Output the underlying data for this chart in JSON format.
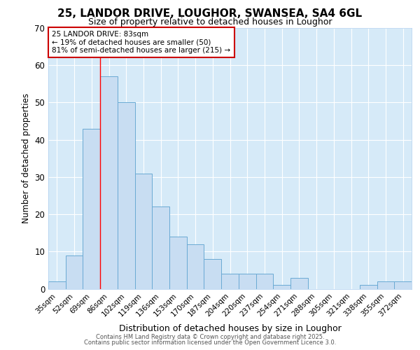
{
  "title_line1": "25, LANDOR DRIVE, LOUGHOR, SWANSEA, SA4 6GL",
  "title_line2": "Size of property relative to detached houses in Loughor",
  "xlabel": "Distribution of detached houses by size in Loughor",
  "ylabel": "Number of detached properties",
  "bar_labels": [
    "35sqm",
    "52sqm",
    "69sqm",
    "86sqm",
    "102sqm",
    "119sqm",
    "136sqm",
    "153sqm",
    "170sqm",
    "187sqm",
    "204sqm",
    "220sqm",
    "237sqm",
    "254sqm",
    "271sqm",
    "288sqm",
    "305sqm",
    "321sqm",
    "338sqm",
    "355sqm",
    "372sqm"
  ],
  "bar_values": [
    2,
    9,
    43,
    57,
    50,
    31,
    22,
    14,
    12,
    8,
    4,
    4,
    4,
    1,
    3,
    0,
    0,
    0,
    1,
    2,
    2
  ],
  "bar_color": "#c8ddf2",
  "bar_edge_color": "#6aaad4",
  "plot_bg_color": "#d6eaf8",
  "fig_bg_color": "#ffffff",
  "grid_color": "#ffffff",
  "red_line_x": 2.5,
  "annotation_title": "25 LANDOR DRIVE: 83sqm",
  "annotation_line2": "← 19% of detached houses are smaller (50)",
  "annotation_line3": "81% of semi-detached houses are larger (215) →",
  "annotation_box_color": "#cc0000",
  "ylim": [
    0,
    70
  ],
  "yticks": [
    0,
    10,
    20,
    30,
    40,
    50,
    60,
    70
  ],
  "footer_line1": "Contains HM Land Registry data © Crown copyright and database right 2025.",
  "footer_line2": "Contains public sector information licensed under the Open Government Licence 3.0."
}
